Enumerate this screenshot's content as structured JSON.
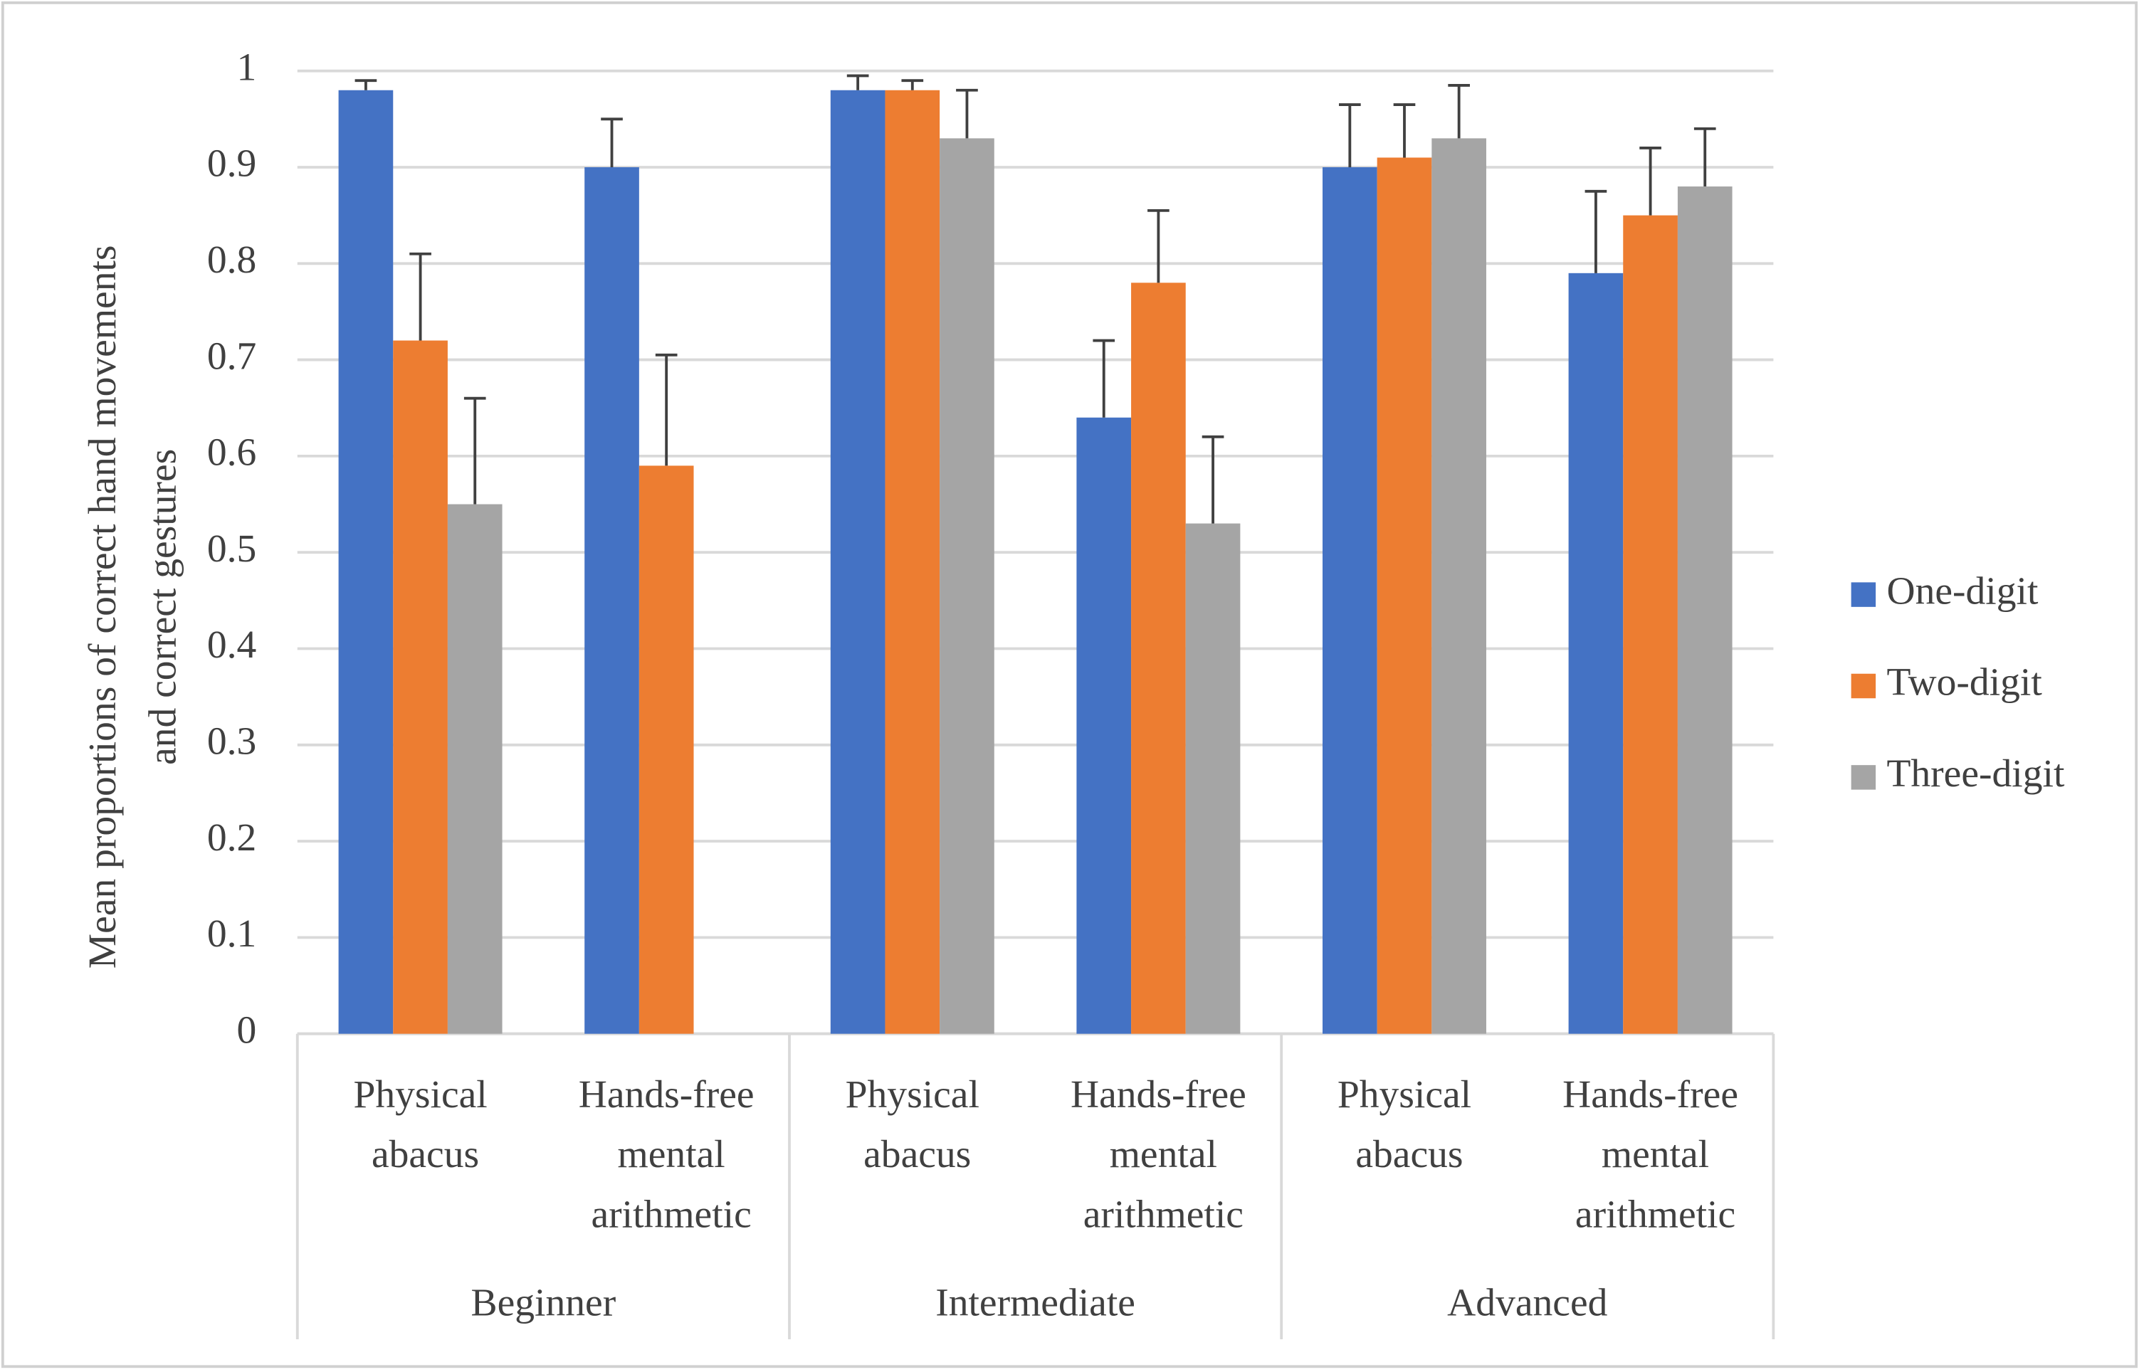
{
  "chart_data": {
    "type": "bar",
    "ylabel": [
      "Mean proportions of correct hand movements",
      "and correct gestures"
    ],
    "categories": [
      "Physical abacus",
      "Hands-free mental arithmetic",
      "Physical abacus",
      "Hands-free mental arithmetic",
      "Physical abacus",
      "Hands-free mental arithmetic"
    ],
    "groups": [
      "Beginner",
      "Intermediate",
      "Advanced"
    ],
    "series": [
      {
        "name": "One-digit",
        "color": "#4472c4",
        "values": [
          0.98,
          0.9,
          0.98,
          0.64,
          0.9,
          0.79
        ],
        "errors": [
          0.01,
          0.05,
          0.015,
          0.08,
          0.065,
          0.085
        ]
      },
      {
        "name": "Two-digit",
        "color": "#ed7d31",
        "values": [
          0.72,
          0.59,
          0.98,
          0.78,
          0.91,
          0.85
        ],
        "errors": [
          0.09,
          0.115,
          0.01,
          0.075,
          0.055,
          0.07
        ]
      },
      {
        "name": "Three-digit",
        "color": "#a5a5a5",
        "values": [
          0.55,
          null,
          0.93,
          0.53,
          0.93,
          0.88
        ],
        "errors": [
          0.11,
          null,
          0.05,
          0.09,
          0.055,
          0.06
        ]
      }
    ],
    "ylim": [
      0,
      1
    ],
    "yticks": [
      0,
      0.1,
      0.2,
      0.3,
      0.4,
      0.5,
      0.6,
      0.7,
      0.8,
      0.9,
      1
    ],
    "grid": true,
    "legend": "right"
  }
}
